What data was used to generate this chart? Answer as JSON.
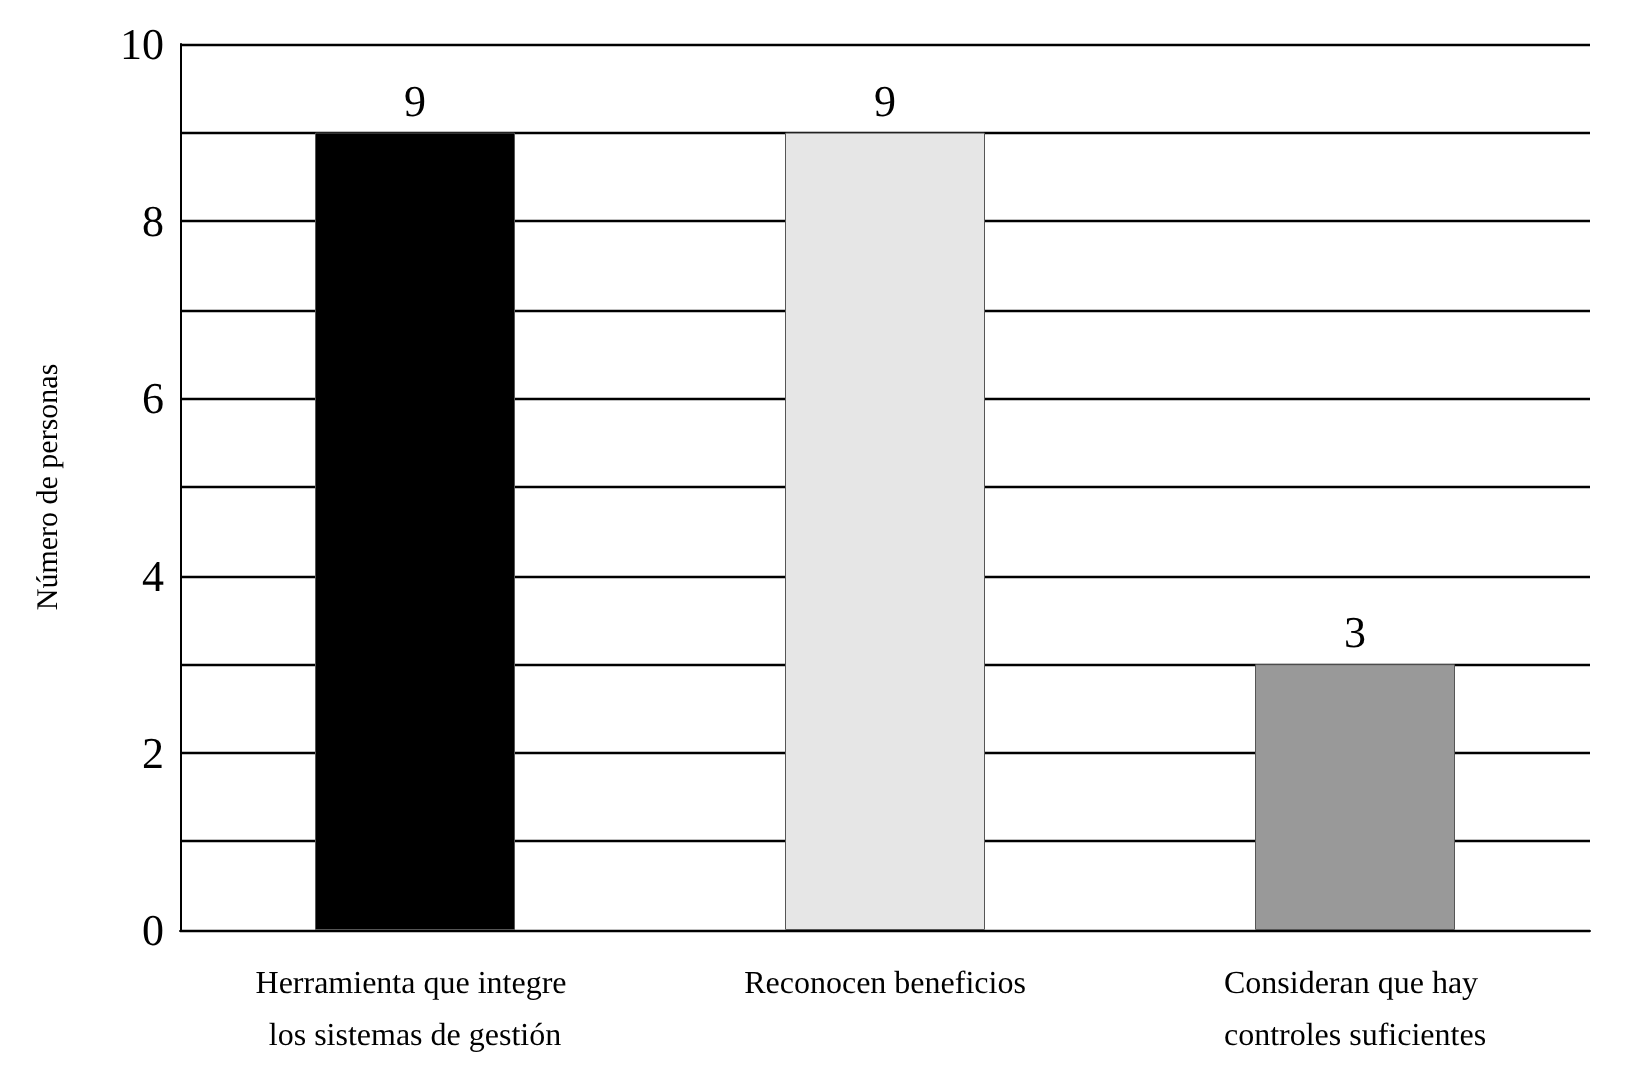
{
  "chart_data": {
    "type": "bar",
    "ylabel": "Número de personas",
    "categories": [
      "Herramienta que integre los sistemas de gestión",
      "Reconocen beneficios",
      "Consideran que hay controles suficientes"
    ],
    "values": [
      9,
      9,
      3
    ],
    "colors": [
      "#000000",
      "#e6e6e6",
      "#999999"
    ],
    "ylim": [
      0,
      10
    ],
    "yticks": [
      0,
      {
        "value": 1,
        "label": null
      },
      2,
      {
        "value": 3,
        "label": null
      },
      4,
      {
        "value": 5,
        "label": null
      },
      6,
      {
        "value": 7,
        "label": null
      },
      8,
      {
        "value": 9,
        "label": null
      },
      10
    ],
    "grid": true,
    "data_labels": true
  }
}
